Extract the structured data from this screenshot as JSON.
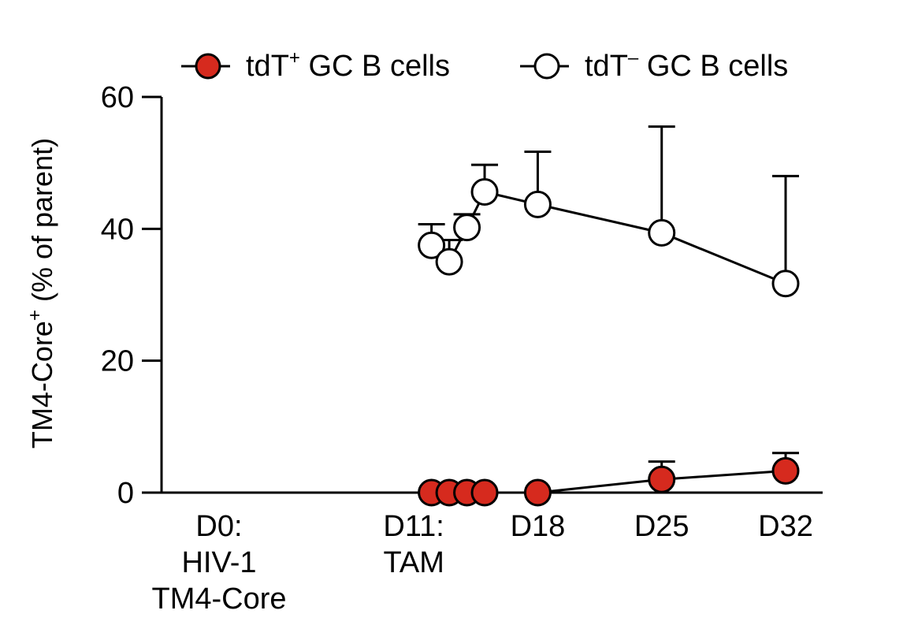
{
  "chart_data": {
    "type": "line",
    "ylabel": "TM4-Core",
    "ylabel_sup": "+",
    "ylabel_suffix": " (% of parent)",
    "ylim": [
      0,
      60
    ],
    "yticks": [
      "0",
      "20",
      "40",
      "60"
    ],
    "ytick_values": [
      0,
      20,
      40,
      60
    ],
    "xlim": [
      0,
      32
    ],
    "xticks": [
      {
        "x": 0,
        "lines": [
          "D0:",
          "HIV-1",
          "TM4-Core"
        ]
      },
      {
        "x": 11,
        "lines": [
          "D11:",
          "TAM"
        ]
      },
      {
        "x": 18,
        "lines": [
          "D18"
        ]
      },
      {
        "x": 25,
        "lines": [
          "D25"
        ]
      },
      {
        "x": 32,
        "lines": [
          "D32"
        ]
      }
    ],
    "legend_position": "top",
    "series": [
      {
        "name": "tdT",
        "name_sup": "+",
        "name_suffix": " GC B cells",
        "fill": "#d62a1e",
        "x": [
          12,
          13,
          14,
          15,
          18,
          25,
          32
        ],
        "y": [
          0,
          0,
          0,
          0,
          0,
          2,
          3.3
        ],
        "err": [
          0,
          0,
          0,
          0,
          0,
          2.7,
          2.7
        ]
      },
      {
        "name": "tdT",
        "name_sup": "–",
        "name_suffix": " GC B cells",
        "fill": "#ffffff",
        "x": [
          12,
          13,
          14,
          15,
          18,
          25,
          32
        ],
        "y": [
          37.5,
          35,
          40.2,
          45.6,
          43.7,
          39.4,
          31.7
        ],
        "err": [
          3.2,
          3.3,
          2,
          4.1,
          8,
          16.1,
          16.3
        ]
      }
    ]
  }
}
